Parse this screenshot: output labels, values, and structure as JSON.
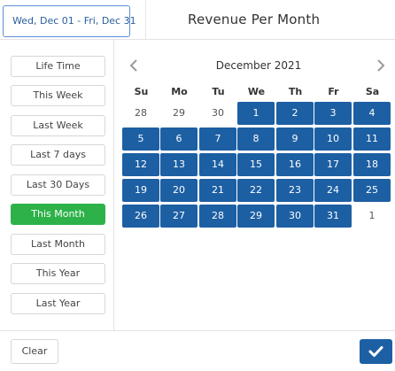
{
  "header": {
    "date_range_value": "Wed, Dec 01 - Fri, Dec 31",
    "page_title": "Revenue Per Month"
  },
  "presets": [
    {
      "label": "Life Time",
      "active": false
    },
    {
      "label": "This Week",
      "active": false
    },
    {
      "label": "Last Week",
      "active": false
    },
    {
      "label": "Last 7 days",
      "active": false
    },
    {
      "label": "Last 30 Days",
      "active": false
    },
    {
      "label": "This Month",
      "active": true
    },
    {
      "label": "Last Month",
      "active": false
    },
    {
      "label": "This Year",
      "active": false
    },
    {
      "label": "Last Year",
      "active": false
    }
  ],
  "calendar": {
    "month_title": "December 2021",
    "prev_icon": "chevron-left-icon",
    "next_icon": "chevron-right-icon",
    "weekdays": [
      "Su",
      "Mo",
      "Tu",
      "We",
      "Th",
      "Fr",
      "Sa"
    ],
    "weeks": [
      [
        {
          "d": "28",
          "sel": false
        },
        {
          "d": "29",
          "sel": false
        },
        {
          "d": "30",
          "sel": false
        },
        {
          "d": "1",
          "sel": true
        },
        {
          "d": "2",
          "sel": true
        },
        {
          "d": "3",
          "sel": true
        },
        {
          "d": "4",
          "sel": true
        }
      ],
      [
        {
          "d": "5",
          "sel": true
        },
        {
          "d": "6",
          "sel": true
        },
        {
          "d": "7",
          "sel": true
        },
        {
          "d": "8",
          "sel": true
        },
        {
          "d": "9",
          "sel": true
        },
        {
          "d": "10",
          "sel": true
        },
        {
          "d": "11",
          "sel": true
        }
      ],
      [
        {
          "d": "12",
          "sel": true
        },
        {
          "d": "13",
          "sel": true
        },
        {
          "d": "14",
          "sel": true
        },
        {
          "d": "15",
          "sel": true
        },
        {
          "d": "16",
          "sel": true
        },
        {
          "d": "17",
          "sel": true
        },
        {
          "d": "18",
          "sel": true
        }
      ],
      [
        {
          "d": "19",
          "sel": true
        },
        {
          "d": "20",
          "sel": true
        },
        {
          "d": "21",
          "sel": true
        },
        {
          "d": "22",
          "sel": true
        },
        {
          "d": "23",
          "sel": true
        },
        {
          "d": "24",
          "sel": true
        },
        {
          "d": "25",
          "sel": true
        }
      ],
      [
        {
          "d": "26",
          "sel": true
        },
        {
          "d": "27",
          "sel": true
        },
        {
          "d": "28",
          "sel": true
        },
        {
          "d": "29",
          "sel": true
        },
        {
          "d": "30",
          "sel": true
        },
        {
          "d": "31",
          "sel": true
        },
        {
          "d": "1",
          "sel": false
        }
      ]
    ]
  },
  "footer": {
    "clear_label": "Clear",
    "apply_icon": "checkmark-icon"
  },
  "colors": {
    "selected_day": "#1d5fa3",
    "active_preset": "#2db24a",
    "input_border": "#5b8fd6"
  }
}
